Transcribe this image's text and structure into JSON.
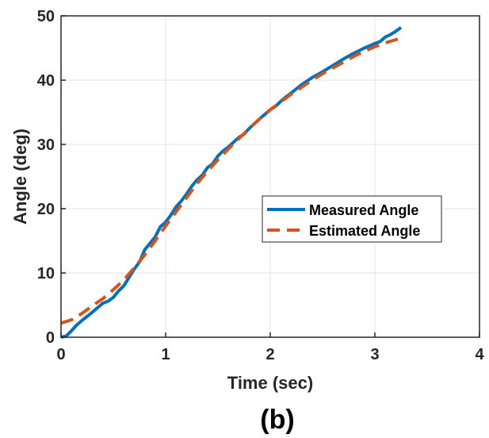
{
  "chart_data": {
    "type": "line",
    "xlabel": "Time (sec)",
    "ylabel": "Angle (deg)",
    "xlim": [
      0,
      4
    ],
    "ylim": [
      0,
      50
    ],
    "xticks": [
      0,
      1,
      2,
      3,
      4
    ],
    "yticks": [
      0,
      10,
      20,
      30,
      40,
      50
    ],
    "grid": true,
    "legend_position": "center-right",
    "series": [
      {
        "name": "Measured Angle",
        "color": "#0072BD",
        "style": "solid",
        "x": [
          0,
          0.05,
          0.1,
          0.15,
          0.2,
          0.3,
          0.4,
          0.45,
          0.5,
          0.55,
          0.6,
          0.65,
          0.7,
          0.75,
          0.8,
          0.85,
          0.9,
          0.95,
          1.0,
          1.05,
          1.1,
          1.15,
          1.2,
          1.25,
          1.3,
          1.35,
          1.4,
          1.45,
          1.5,
          1.55,
          1.6,
          1.7,
          1.75,
          1.8,
          1.9,
          2.0,
          2.05,
          2.1,
          2.15,
          2.2,
          2.3,
          2.4,
          2.5,
          2.6,
          2.7,
          2.8,
          2.9,
          3.0,
          3.05,
          3.1,
          3.15,
          3.2,
          3.25
        ],
        "y": [
          0,
          0.2,
          1.0,
          1.9,
          2.6,
          3.9,
          5.3,
          5.6,
          6.2,
          7.2,
          8.0,
          9.3,
          10.6,
          11.7,
          13.6,
          14.6,
          15.6,
          17.2,
          17.9,
          19.0,
          20.3,
          21.2,
          22.3,
          23.5,
          24.5,
          25.2,
          26.4,
          27.0,
          28.2,
          29.0,
          29.6,
          31.1,
          31.6,
          32.5,
          34.0,
          35.4,
          35.9,
          36.7,
          37.4,
          38.0,
          39.3,
          40.4,
          41.3,
          42.3,
          43.3,
          44.2,
          45.0,
          45.7,
          46.0,
          46.7,
          47.1,
          47.6,
          48.2
        ]
      },
      {
        "name": "Estimated Angle",
        "color": "#D95319",
        "style": "dashed",
        "x": [
          0,
          0.1,
          0.2,
          0.3,
          0.4,
          0.5,
          0.6,
          0.7,
          0.8,
          0.9,
          1.0,
          1.1,
          1.2,
          1.3,
          1.4,
          1.5,
          1.6,
          1.7,
          1.8,
          1.9,
          2.0,
          2.1,
          2.2,
          2.3,
          2.4,
          2.5,
          2.6,
          2.7,
          2.8,
          2.9,
          3.0,
          3.1,
          3.2,
          3.25
        ],
        "y": [
          2.2,
          2.7,
          3.7,
          4.9,
          6.0,
          7.4,
          8.9,
          10.8,
          12.8,
          15.0,
          17.3,
          19.5,
          21.7,
          23.9,
          25.8,
          27.6,
          29.3,
          30.9,
          32.5,
          34.0,
          35.4,
          36.6,
          37.8,
          38.9,
          40.0,
          41.0,
          41.9,
          42.8,
          43.7,
          44.5,
          45.2,
          45.8,
          46.3,
          46.5
        ]
      }
    ]
  },
  "caption": "(b)"
}
